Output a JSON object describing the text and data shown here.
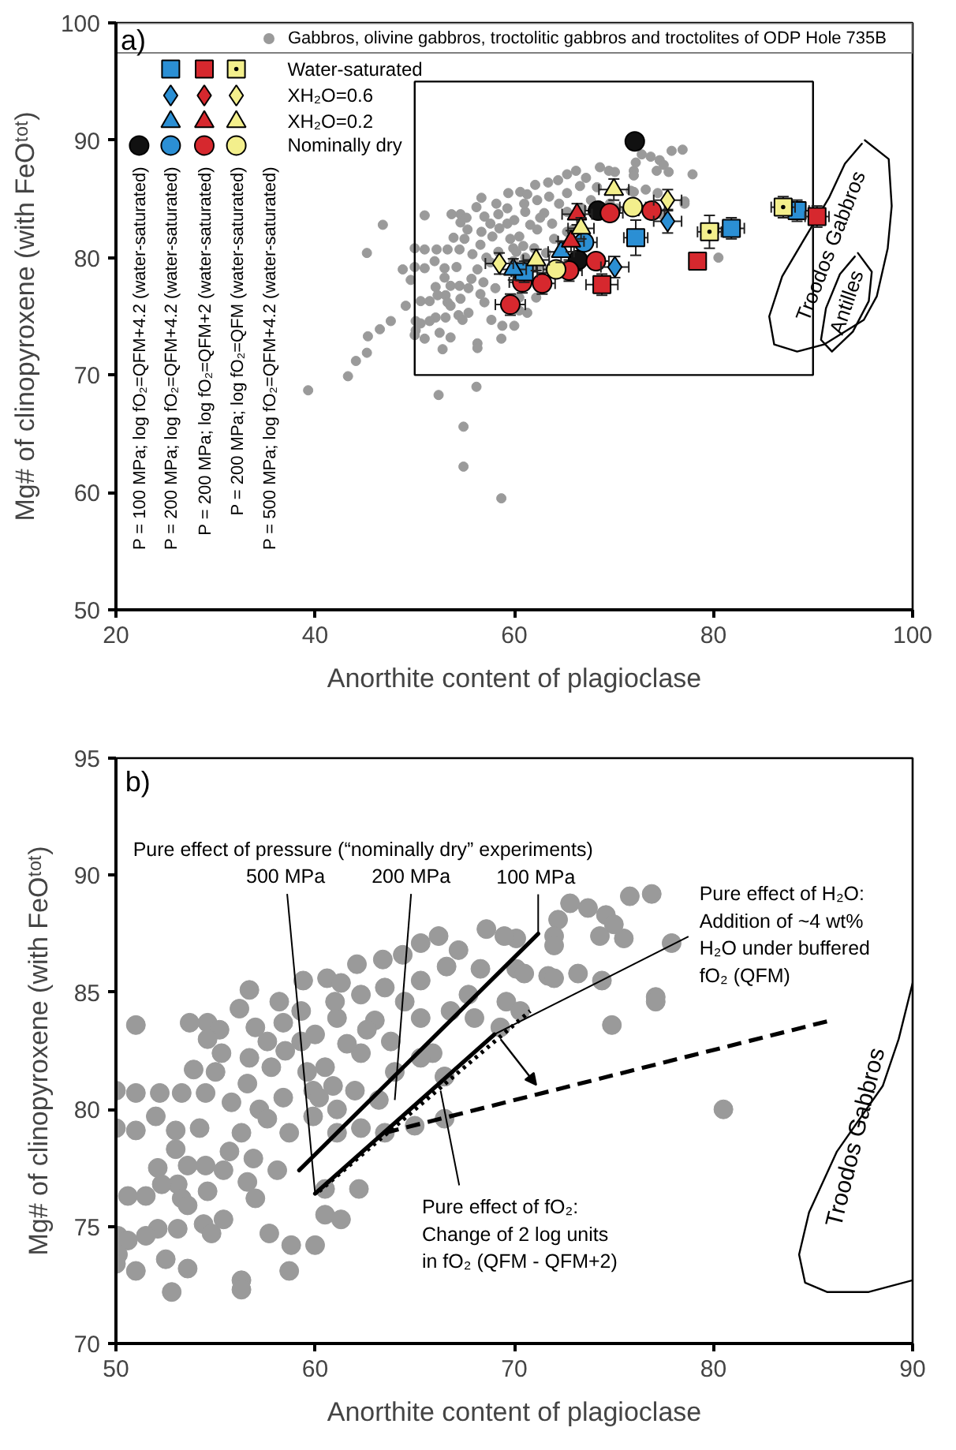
{
  "chart_data": [
    {
      "type": "scatter",
      "xlabel": "Anorthite content of plagioclase",
      "ylabel": "Mg# of clinopyroxene (with FeOᵗᵒᵗ)",
      "xlim": [
        20,
        100
      ],
      "ylim": [
        50,
        100
      ],
      "xticks": [
        20,
        40,
        60,
        80,
        100
      ],
      "yticks": [
        50,
        60,
        70,
        80,
        90,
        100
      ],
      "legend": "top left",
      "annotations": [
        "a)",
        "P = 100 MPa; log fO₂=QFM+4.2 (water-saturated)",
        "P = 200 MPa; log fO₂=QFM+4.2 (water-saturated)",
        "P = 200 MPa; log fO₂=QFM+2 (water-saturated)",
        "P = 200 MPa; log fO₂=QFM (water-saturated)",
        "P = 500 MPa; log fO₂=QFM+4.2 (water-saturated)"
      ],
      "series": [
        {
          "name": "Gabbros, olivine gabbros, troctolitic gabbros and troctolites of ODP Hole 735B",
          "color": "#9a9a9a",
          "marker": "circle",
          "x": [
            76.9,
            75.8,
            72.8,
            73.7,
            74.6,
            72.2,
            75.0,
            75.5,
            74.3,
            72.0,
            72.0,
            77.9,
            70.1,
            68.6,
            69.5,
            66.2,
            65.3,
            64.4,
            63.4,
            62.1,
            67.2,
            68.3,
            71.7,
            72.0,
            73.2,
            74.4,
            77.1,
            77.1,
            74.9,
            60.6,
            61.3,
            59.4,
            56.7,
            56.2,
            58.4,
            54.6,
            53.7,
            51.0,
            55.2,
            54.6,
            55.3,
            53.9,
            56.7,
            57.6,
            59.3,
            61.1,
            62.3,
            63.5,
            65.3,
            66.6,
            67.7,
            66.8,
            65.3,
            63.8,
            62.3,
            60.5,
            59.3,
            57.8,
            65.9,
            65.3,
            69.6,
            70.3,
            60.9,
            59.9,
            62.0,
            56.6,
            50.0,
            51.0,
            50.0,
            51.0,
            52.2,
            52.0,
            53.3,
            54.5,
            53.0,
            54.2,
            53.0,
            52.1,
            53.6,
            54.5,
            55.4,
            56.3,
            55.7,
            56.9,
            58.1,
            56.6,
            57.0,
            54.6,
            53.1,
            52.3,
            50.6,
            51.5,
            53.3,
            53.6,
            52.1,
            53.1,
            54.4,
            55.4,
            54.8,
            50.1,
            50.6,
            51.5,
            50.1,
            50.0,
            51.0,
            52.5,
            53.6,
            52.8,
            56.3,
            56.3,
            57.7,
            58.8,
            58.7,
            60.0,
            60.5,
            61.3,
            60.5,
            62.2,
            62.3,
            63.5,
            80.5,
            57.2,
            58.4,
            60.2,
            59.9,
            61.1,
            57.0,
            58.5,
            55.8,
            55.0,
            57.6,
            59.6,
            61.6,
            63.0,
            64.5,
            62.6,
            61.0,
            58.2,
            60.0,
            64.0,
            63.2,
            39.3,
            43.3,
            44.1,
            45.2,
            45.3,
            46.5,
            47.6,
            46.8,
            45.2,
            48.8,
            49.1,
            49.6,
            52.4,
            54.9,
            54.9,
            58.7,
            56.2
          ],
          "values": [
            89.2,
            89.1,
            88.8,
            88.6,
            88.3,
            88.1,
            87.9,
            87.3,
            87.4,
            87.4,
            87.0,
            87.1,
            87.3,
            87.7,
            87.4,
            87.4,
            87.1,
            86.6,
            86.4,
            86.2,
            86.8,
            86.0,
            85.7,
            85.6,
            85.8,
            85.5,
            84.8,
            84.6,
            83.6,
            85.6,
            85.4,
            85.5,
            85.1,
            84.3,
            83.7,
            83.7,
            83.7,
            83.6,
            83.4,
            83.0,
            82.4,
            81.7,
            82.2,
            82.9,
            84.2,
            83.9,
            84.9,
            85.2,
            85.5,
            86.1,
            84.9,
            84.2,
            83.9,
            82.9,
            82.4,
            81.8,
            82.9,
            81.8,
            82.4,
            82.2,
            84.6,
            84.2,
            81.0,
            80.8,
            80.8,
            81.1,
            80.8,
            80.7,
            79.2,
            79.1,
            80.7,
            79.7,
            80.7,
            80.7,
            79.1,
            79.2,
            78.3,
            77.5,
            77.6,
            77.6,
            77.4,
            79.0,
            78.2,
            77.9,
            77.4,
            76.9,
            76.2,
            76.5,
            76.8,
            76.8,
            76.3,
            76.3,
            76.2,
            75.9,
            74.9,
            74.9,
            75.1,
            75.3,
            74.7,
            74.6,
            74.4,
            74.6,
            73.8,
            73.4,
            73.1,
            73.6,
            73.2,
            72.2,
            72.7,
            72.3,
            74.7,
            74.2,
            73.1,
            74.2,
            75.5,
            75.3,
            76.6,
            76.6,
            79.2,
            79.0,
            80.0,
            80.0,
            80.5,
            80.5,
            79.7,
            80.0,
            83.5,
            82.5,
            80.3,
            81.6,
            79.6,
            81.6,
            82.8,
            83.8,
            84.6,
            83.4,
            84.6,
            84.6,
            83.2,
            81.6,
            80.4,
            68.7,
            69.9,
            71.2,
            71.9,
            73.3,
            73.9,
            74.6,
            82.8,
            80.4,
            79.0,
            75.9,
            78.1,
            68.3,
            65.6,
            62.2,
            59.5,
            69.0
          ]
        },
        {
          "name": "Nominally dry",
          "marker": "circle",
          "colors": [
            "#111111",
            "#111111",
            "#111111",
            "#2b8fd4",
            "#d6282e",
            "#d6282e",
            "#d6282e",
            "#d6282e",
            "#d6282e",
            "#d6282e",
            "#d6282e",
            "#f3ef8c",
            "#f3ef8c"
          ],
          "x": [
            72.1,
            68.4,
            66.4,
            67.0,
            73.8,
            69.6,
            68.2,
            65.5,
            62.8,
            60.8,
            59.6,
            71.9,
            64.2
          ],
          "values": [
            89.9,
            84.0,
            79.8,
            81.3,
            84.0,
            83.8,
            79.7,
            78.9,
            77.8,
            77.9,
            76.0,
            84.3,
            79.0
          ],
          "xerrors": [
            null,
            1.3,
            null,
            1.3,
            1.3,
            1.3,
            1.3,
            1.3,
            1.3,
            1.3,
            1.5,
            1.3,
            1.3
          ],
          "errors": [
            null,
            null,
            null,
            null,
            null,
            null,
            null,
            0.9,
            0.9,
            0.9,
            0.9,
            null,
            null
          ]
        },
        {
          "color": "#2b8fd4",
          "marker": "square",
          "x": [
            88.4,
            81.8,
            72.2,
            61.0
          ],
          "values": [
            84.0,
            82.5,
            81.7,
            78.8
          ],
          "xerrors": [
            1.2,
            1.3,
            1.2,
            1.3
          ],
          "errors": [
            0.9,
            0.9,
            1.5,
            0.9
          ]
        },
        {
          "color": "#2b8fd4",
          "marker": "diamond",
          "x": [
            75.4,
            70.1
          ],
          "values": [
            83.1,
            79.2
          ],
          "xerrors": [
            1.4,
            1.4
          ],
          "errors": [
            1.0,
            0.9
          ]
        },
        {
          "color": "#2b8fd4",
          "marker": "triangle",
          "x": [
            64.7,
            59.9
          ],
          "values": [
            80.5,
            79.0
          ],
          "xerrors": [
            1.3,
            1.3
          ],
          "errors": [
            0.9,
            0.9
          ]
        },
        {
          "color": "#d6282e",
          "marker": "square",
          "x": [
            90.4,
            78.4,
            68.8
          ],
          "values": [
            83.5,
            79.7,
            77.7
          ],
          "xerrors": [
            1.2,
            null,
            1.6
          ],
          "errors": [
            0.9,
            null,
            0.9
          ]
        },
        {
          "color": "#d6282e",
          "marker": "diamond"
        },
        {
          "color": "#d6282e",
          "marker": "triangle",
          "x": [
            66.3,
            65.7
          ],
          "values": [
            83.7,
            81.4
          ],
          "xerrors": [
            1.5,
            1.3
          ],
          "errors": [
            0.9,
            0.9
          ]
        },
        {
          "name": "Water-saturated",
          "color": "#f3ef8c",
          "marker": "square",
          "x": [
            87.0,
            79.6
          ],
          "values": [
            84.3,
            82.2
          ],
          "xerrors": [
            1.2,
            1.2
          ],
          "errors": [
            0.9,
            1.4
          ]
        },
        {
          "name": "XH₂O=0.6",
          "color": "#f3ef8c",
          "marker": "diamond",
          "x": [
            75.4,
            58.5
          ],
          "values": [
            84.9,
            79.5
          ],
          "xerrors": [
            1.4,
            1.4
          ],
          "errors": [
            0.9,
            0.9
          ]
        },
        {
          "name": "XH₂O=0.2",
          "color": "#f3ef8c",
          "marker": "triangle",
          "x": [
            70.0,
            66.7,
            62.2
          ],
          "values": [
            85.8,
            82.5,
            79.8
          ],
          "xerrors": [
            1.5,
            1.3,
            1.3
          ],
          "errors": [
            0.9,
            0.9,
            0.9
          ]
        },
        {
          "type": "line",
          "name": "Troodos Gabbros",
          "color": "#000000",
          "line_style": "solid",
          "x": [
            95.2,
            97.6,
            97.9,
            97.5,
            96.4,
            95.1,
            91.1,
            88.4,
            86.1,
            85.6,
            86.9,
            89.2,
            91.6,
            93.2,
            94.9
          ],
          "values": [
            90.0,
            88.4,
            84.4,
            80.8,
            76.7,
            74.7,
            72.6,
            72.0,
            72.6,
            75.0,
            78.4,
            81.7,
            85.1,
            88.0,
            89.7
          ]
        },
        {
          "type": "line",
          "name": "Antilles",
          "color": "#000000",
          "line_style": "solid",
          "x": [
            94.5,
            95.9,
            95.6,
            94.0,
            91.9,
            90.8,
            91.3,
            92.7,
            94.2
          ],
          "values": [
            80.4,
            78.8,
            76.3,
            73.7,
            72.0,
            73.0,
            75.7,
            78.6,
            80.1
          ]
        }
      ]
    },
    {
      "type": "scatter",
      "xlabel": "Anorthite content of plagioclase",
      "ylabel": "Mg# of clinopyroxene (with FeOᵗᵒᵗ)",
      "xlim": [
        50,
        90
      ],
      "ylim": [
        70,
        95
      ],
      "xticks": [
        50,
        60,
        70,
        80,
        90
      ],
      "yticks": [
        70,
        75,
        80,
        85,
        90,
        95
      ],
      "annotations": [
        "b)",
        "Pure effect of pressure (“nominally dry” experiments)",
        {
          "text": "500 MPa",
          "x": 60.0,
          "y": 76.4
        },
        {
          "text": "200 MPa",
          "x": 64.0,
          "y": 80.4
        },
        {
          "text": "100 MPa",
          "x": 71.2,
          "y": 87.5
        },
        {
          "text": "Pure effect of H₂O: Addition of ~4 wt% H₂O under buffered fO₂ (QFM)",
          "x": 69.0,
          "y": 83.2
        },
        {
          "text": "Pure effect of fO₂: Change of 2 log units in fO₂ (QFM - QFM+2)",
          "x": 66.3,
          "y": 80.8
        }
      ],
      "series": [
        {
          "color": "#9a9a9a",
          "marker": "circle",
          "x": [
            76.9,
            75.8,
            72.8,
            73.7,
            74.6,
            72.2,
            75.0,
            75.5,
            74.3,
            72.0,
            72.0,
            77.9,
            70.1,
            68.6,
            69.5,
            66.2,
            65.3,
            64.4,
            63.4,
            62.1,
            67.2,
            68.3,
            70.1,
            70.5,
            71.7,
            72.0,
            73.2,
            74.4,
            77.1,
            77.1,
            74.9,
            60.6,
            61.3,
            59.4,
            56.7,
            56.2,
            58.4,
            54.6,
            53.7,
            51.0,
            55.2,
            54.6,
            55.3,
            53.9,
            56.7,
            57.6,
            59.3,
            61.1,
            62.3,
            63.5,
            65.3,
            66.6,
            67.7,
            68.0,
            66.8,
            65.3,
            63.8,
            62.3,
            60.5,
            59.3,
            57.8,
            65.9,
            66.5,
            65.3,
            69.6,
            69.3,
            70.3,
            60.9,
            59.9,
            62.0,
            56.6,
            50.0,
            51.0,
            50.0,
            51.0,
            52.2,
            52.0,
            53.3,
            54.5,
            53.0,
            54.2,
            53.0,
            52.1,
            53.6,
            54.5,
            55.4,
            56.3,
            55.7,
            56.9,
            58.1,
            56.6,
            57.0,
            54.6,
            53.1,
            52.3,
            50.6,
            51.5,
            53.3,
            53.6,
            52.1,
            53.1,
            54.4,
            55.4,
            54.8,
            50.1,
            50.6,
            51.5,
            50.1,
            50.0,
            51.0,
            52.5,
            53.6,
            52.8,
            56.3,
            56.3,
            57.7,
            58.8,
            58.7,
            60.0,
            60.5,
            61.3,
            60.5,
            62.2,
            61.1,
            62.3,
            63.5,
            65.0,
            66.5,
            66.5,
            80.5,
            57.2,
            58.4,
            60.2,
            58.7,
            59.9,
            61.1,
            57.0,
            58.5,
            55.8,
            55.0,
            57.6,
            59.6,
            61.6,
            63.0,
            64.5,
            62.6,
            61.0,
            58.2,
            60.0,
            64.0,
            63.2
          ],
          "values": [
            89.2,
            89.1,
            88.8,
            88.6,
            88.3,
            88.1,
            87.9,
            87.3,
            87.4,
            87.4,
            87.0,
            87.1,
            87.3,
            87.7,
            87.4,
            87.4,
            87.1,
            86.6,
            86.4,
            86.2,
            86.8,
            86.0,
            86.0,
            85.8,
            85.7,
            85.6,
            85.8,
            85.5,
            84.8,
            84.6,
            83.6,
            85.6,
            85.4,
            85.5,
            85.1,
            84.3,
            83.7,
            83.7,
            83.7,
            83.6,
            83.4,
            83.0,
            82.4,
            81.7,
            82.2,
            82.9,
            84.2,
            83.9,
            84.9,
            85.2,
            85.5,
            86.1,
            84.9,
            83.9,
            84.2,
            83.9,
            82.9,
            82.4,
            81.8,
            82.9,
            81.8,
            82.4,
            81.4,
            82.2,
            84.6,
            83.5,
            84.2,
            81.0,
            80.8,
            80.8,
            81.1,
            80.8,
            80.7,
            79.2,
            79.1,
            80.7,
            79.7,
            80.7,
            80.7,
            79.1,
            79.2,
            78.3,
            77.5,
            77.6,
            77.6,
            77.4,
            79.0,
            78.2,
            77.9,
            77.4,
            76.9,
            76.2,
            76.5,
            76.8,
            76.8,
            76.3,
            76.3,
            76.2,
            75.9,
            74.9,
            74.9,
            75.1,
            75.3,
            74.7,
            74.6,
            74.4,
            74.6,
            73.8,
            73.4,
            73.1,
            73.6,
            73.2,
            72.2,
            72.7,
            72.3,
            74.7,
            74.2,
            73.1,
            74.2,
            75.5,
            75.3,
            76.6,
            76.6,
            79.0,
            79.2,
            79.0,
            79.3,
            79.6,
            81.4,
            80.0,
            80.0,
            80.5,
            80.5,
            79.0,
            79.7,
            80.0,
            83.5,
            82.5,
            80.3,
            81.6,
            79.6,
            81.6,
            82.8,
            83.8,
            84.6,
            83.4,
            84.6,
            84.6,
            83.2,
            81.6,
            80.4
          ]
        },
        {
          "type": "line",
          "color": "#000000",
          "line_style": "solid",
          "x": [
            59.2,
            71.2
          ],
          "values": [
            77.4,
            87.5
          ]
        },
        {
          "type": "line",
          "color": "#000000",
          "line_style": "solid",
          "x": [
            60.0,
            69.0
          ],
          "values": [
            76.4,
            83.2
          ]
        },
        {
          "type": "line",
          "color": "#000000",
          "line_style": "dotted",
          "x": [
            60.2,
            70.8
          ],
          "values": [
            76.5,
            84.2
          ]
        },
        {
          "type": "line",
          "color": "#000000",
          "line_style": "dashed",
          "x": [
            63.5,
            85.9
          ],
          "values": [
            79.0,
            83.8
          ]
        },
        {
          "type": "line",
          "name": "Troodos Gabbros",
          "color": "#000000",
          "line_style": "solid",
          "x": [
            90.0,
            89.3,
            88.5,
            86.2,
            84.8,
            84.3,
            84.6,
            85.7,
            87.8,
            90.0
          ],
          "values": [
            85.4,
            83.0,
            81.0,
            78.2,
            75.6,
            73.8,
            72.6,
            72.2,
            72.2,
            72.7
          ]
        }
      ]
    }
  ]
}
